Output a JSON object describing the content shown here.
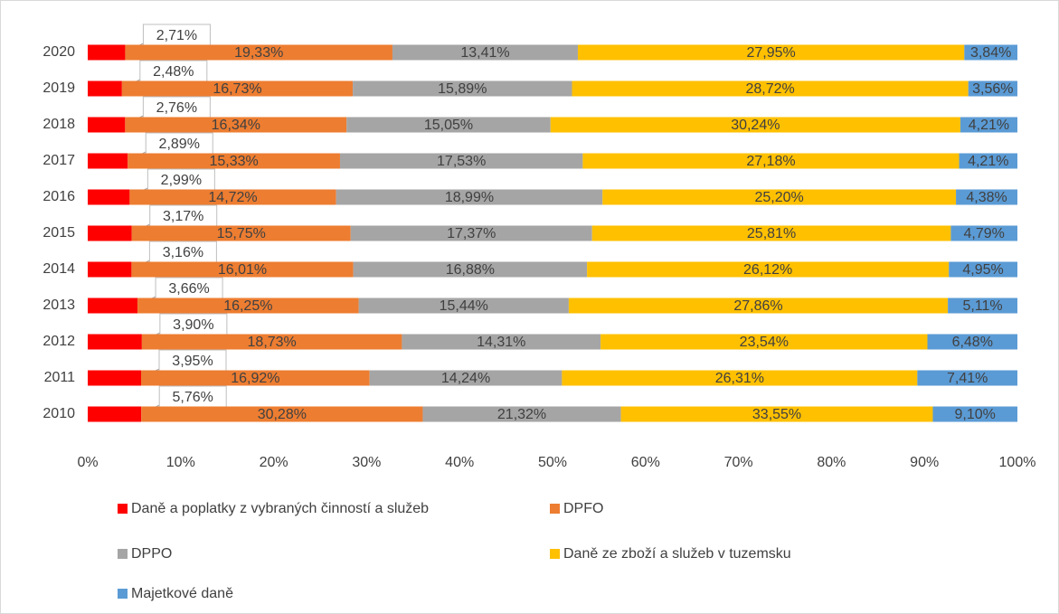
{
  "chart_data": {
    "type": "bar",
    "orientation": "horizontal",
    "stacked": "percent",
    "categories": [
      "2020",
      "2019",
      "2018",
      "2017",
      "2016",
      "2015",
      "2014",
      "2013",
      "2012",
      "2011",
      "2010"
    ],
    "series": [
      {
        "name": "Daně a poplatky z vybraných činností a služeb",
        "color": "#ff0000",
        "values": [
          2.71,
          2.48,
          2.76,
          2.89,
          2.99,
          3.17,
          3.16,
          3.66,
          3.9,
          3.95,
          5.76
        ],
        "value_labels": [
          "2,71%",
          "2,48%",
          "2,76%",
          "2,89%",
          "2,99%",
          "3,17%",
          "3,16%",
          "3,66%",
          "3,90%",
          "3,95%",
          "5,76%"
        ]
      },
      {
        "name": "DPFO",
        "color": "#ed7d31",
        "values": [
          19.33,
          16.73,
          16.34,
          15.33,
          14.72,
          15.75,
          16.01,
          16.25,
          18.73,
          16.92,
          30.28
        ],
        "value_labels": [
          "19,33%",
          "16,73%",
          "16,34%",
          "15,33%",
          "14,72%",
          "15,75%",
          "16,01%",
          "16,25%",
          "18,73%",
          "16,92%",
          "30,28%"
        ]
      },
      {
        "name": "DPPO",
        "color": "#a5a5a5",
        "values": [
          13.41,
          15.89,
          15.05,
          17.53,
          18.99,
          17.37,
          16.88,
          15.44,
          14.31,
          14.24,
          21.32
        ],
        "value_labels": [
          "13,41%",
          "15,89%",
          "15,05%",
          "17,53%",
          "18,99%",
          "17,37%",
          "16,88%",
          "15,44%",
          "14,31%",
          "14,24%",
          "21,32%"
        ]
      },
      {
        "name": "Daně ze zboží a služeb v tuzemsku",
        "color": "#ffc000",
        "values": [
          27.95,
          28.72,
          30.24,
          27.18,
          25.2,
          25.81,
          26.12,
          27.86,
          23.54,
          26.31,
          33.55
        ],
        "value_labels": [
          "27,95%",
          "28,72%",
          "30,24%",
          "27,18%",
          "25,20%",
          "25,81%",
          "26,12%",
          "27,86%",
          "23,54%",
          "26,31%",
          "33,55%"
        ]
      },
      {
        "name": "Majetkové daně",
        "color": "#5b9bd5",
        "values": [
          3.84,
          3.56,
          4.21,
          4.21,
          4.38,
          4.79,
          4.95,
          5.11,
          6.48,
          7.41,
          9.1
        ],
        "value_labels": [
          "3,84%",
          "3,56%",
          "4,21%",
          "4,21%",
          "4,38%",
          "4,79%",
          "4,95%",
          "5,11%",
          "6,48%",
          "7,41%",
          "9,10%"
        ]
      }
    ],
    "xlim": [
      0,
      100
    ],
    "xticks": [
      {
        "value": 0,
        "label": "0%"
      },
      {
        "value": 10,
        "label": "10%"
      },
      {
        "value": 20,
        "label": "20%"
      },
      {
        "value": 30,
        "label": "30%"
      },
      {
        "value": 40,
        "label": "40%"
      },
      {
        "value": 50,
        "label": "50%"
      },
      {
        "value": 60,
        "label": "60%"
      },
      {
        "value": 70,
        "label": "70%"
      },
      {
        "value": 80,
        "label": "80%"
      },
      {
        "value": 90,
        "label": "90%"
      },
      {
        "value": 100,
        "label": "100%"
      }
    ],
    "legend": "bottom"
  }
}
